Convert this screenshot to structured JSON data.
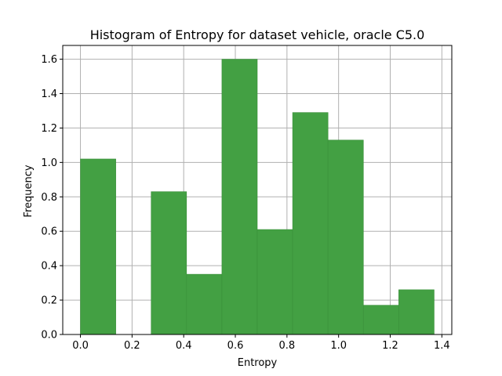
{
  "chart_data": {
    "type": "bar",
    "title": "Histogram of Entropy for dataset vehicle, oracle C5.0",
    "xlabel": "Entropy",
    "ylabel": "Frequency",
    "bin_edges": [
      0.0,
      0.137,
      0.274,
      0.411,
      0.548,
      0.685,
      0.822,
      0.959,
      1.096,
      1.233,
      1.37
    ],
    "values": [
      1.02,
      0.0,
      0.83,
      0.35,
      1.6,
      0.61,
      1.29,
      1.13,
      0.17,
      0.26
    ],
    "xlim": [
      -0.0685,
      1.4385
    ],
    "ylim": [
      0.0,
      1.68
    ],
    "xticks": [
      0.0,
      0.2,
      0.4,
      0.6,
      0.8,
      1.0,
      1.2,
      1.4
    ],
    "xtick_labels": [
      "0.0",
      "0.2",
      "0.4",
      "0.6",
      "0.8",
      "1.0",
      "1.2",
      "1.4"
    ],
    "yticks": [
      0.0,
      0.2,
      0.4,
      0.6,
      0.8,
      1.0,
      1.2,
      1.4,
      1.6
    ],
    "ytick_labels": [
      "0.0",
      "0.2",
      "0.4",
      "0.6",
      "0.8",
      "1.0",
      "1.2",
      "1.4",
      "1.6"
    ],
    "grid": true,
    "bar_color": "#43a043",
    "bar_edge_color": "#3a8f3a"
  }
}
